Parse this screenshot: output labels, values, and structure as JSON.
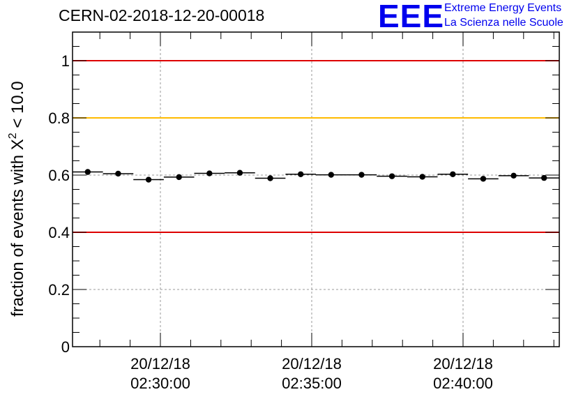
{
  "title": "CERN-02-2018-12-20-00018",
  "logo": {
    "mark": "EEE",
    "line1": "Extreme Energy Events",
    "line2": "La Scienza nelle Scuole",
    "color": "#0000ee"
  },
  "chart_data": {
    "type": "scatter",
    "title": "CERN-02-2018-12-20-00018",
    "ylabel_main": "fraction of events with X",
    "ylabel_sup": "2",
    "ylabel_tail": " < 10.0",
    "ylim": [
      0,
      1.1
    ],
    "yticks": [
      0,
      0.2,
      0.4,
      0.6,
      0.8,
      1
    ],
    "ytick_labels": [
      "0",
      "0.2",
      "0.4",
      "0.6",
      "0.8",
      "1"
    ],
    "xtick_labels": [
      {
        "date": "20/12/18",
        "time": "02:30:00"
      },
      {
        "date": "20/12/18",
        "time": "02:35:00"
      },
      {
        "date": "20/12/18",
        "time": "02:40:00"
      }
    ],
    "grid": true,
    "reference_lines": [
      {
        "y": 1.0,
        "color": "#dd0000"
      },
      {
        "y": 0.8,
        "color": "#ffbb00"
      },
      {
        "y": 0.4,
        "color": "#dd0000"
      }
    ],
    "points": [
      0.611,
      0.605,
      0.584,
      0.593,
      0.606,
      0.608,
      0.589,
      0.603,
      0.601,
      0.601,
      0.596,
      0.594,
      0.603,
      0.587,
      0.598,
      0.59
    ]
  }
}
